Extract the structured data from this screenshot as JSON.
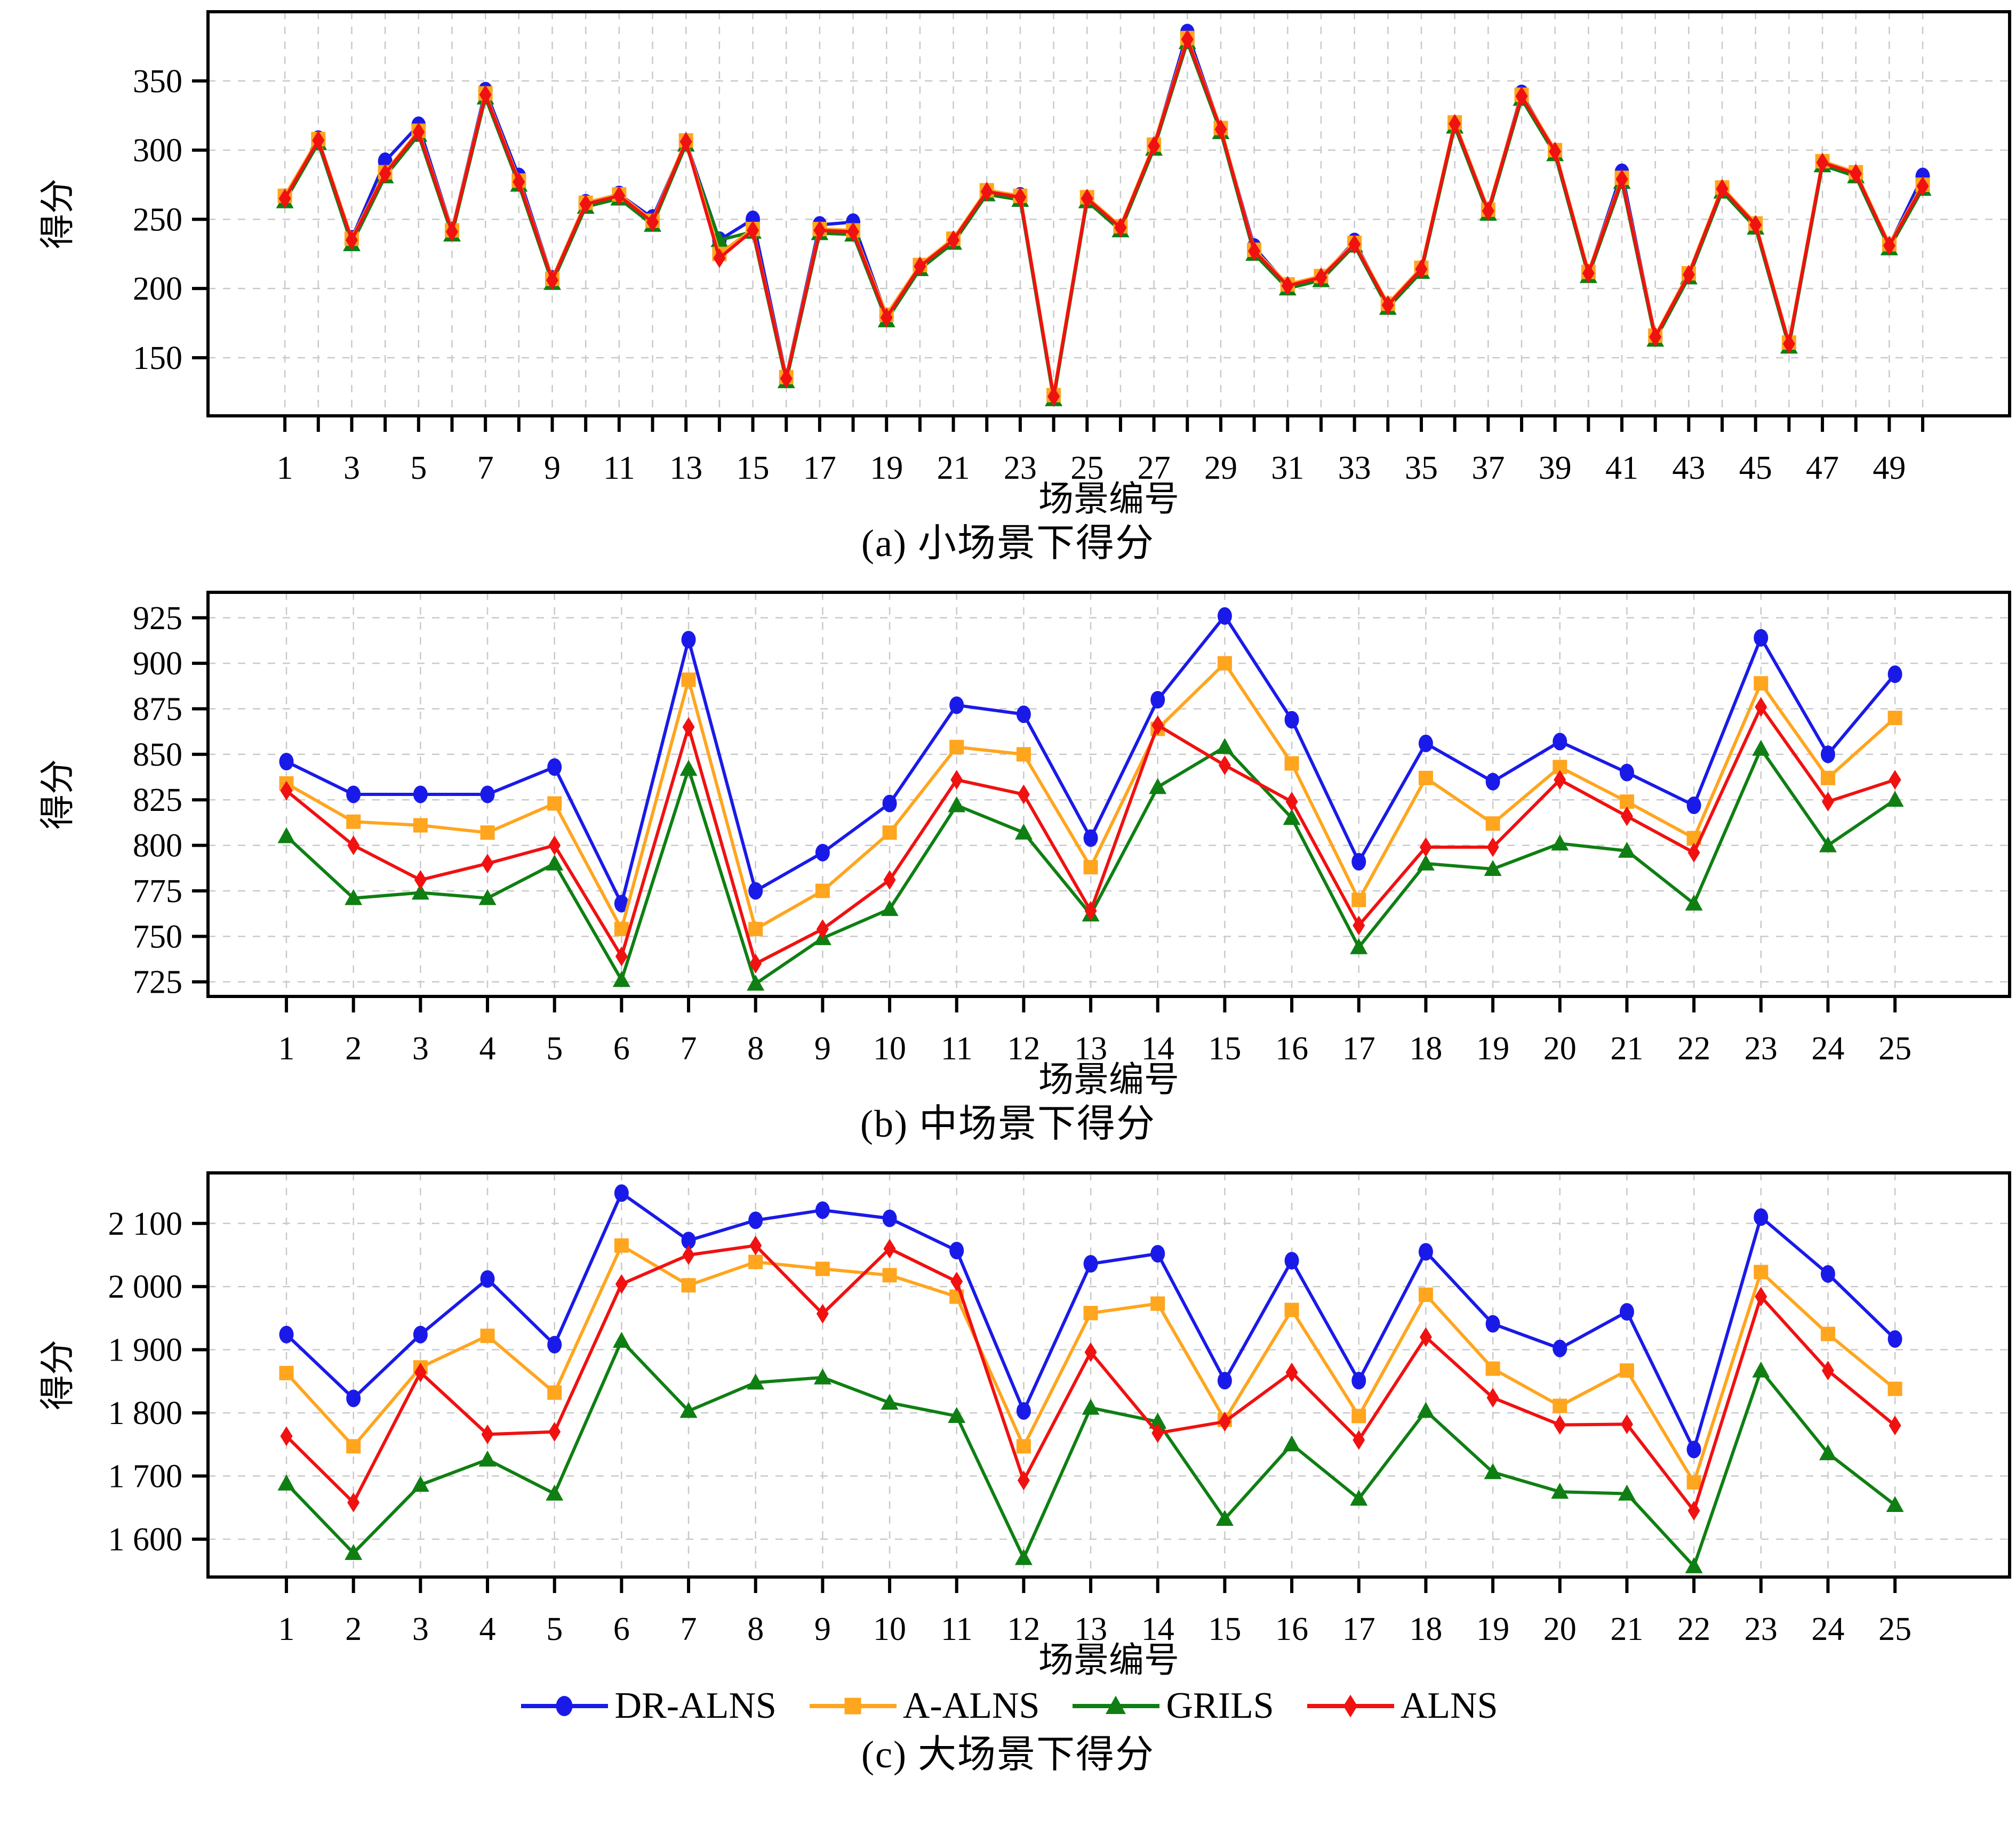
{
  "legend": [
    {
      "name": "DR-ALNS",
      "color": "#1a1ae8",
      "marker": "circle"
    },
    {
      "name": "A-ALNS",
      "color": "#ffa51e",
      "marker": "square"
    },
    {
      "name": "GRILS",
      "color": "#0f7f13",
      "marker": "triangle"
    },
    {
      "name": "ALNS",
      "color": "#f01111",
      "marker": "diamond"
    }
  ],
  "style": {
    "grid_color": "#c9c9c9",
    "frame_color": "#000000",
    "legend_position": "bottom-center",
    "grid": "on"
  },
  "chart_data": [
    {
      "id": "a",
      "type": "line",
      "caption": "(a) 小场景下得分",
      "xlabel": "场景编号",
      "ylabel": "得分",
      "x": [
        1,
        2,
        3,
        4,
        5,
        6,
        7,
        8,
        9,
        10,
        11,
        12,
        13,
        14,
        15,
        16,
        17,
        18,
        19,
        20,
        21,
        22,
        23,
        24,
        25,
        26,
        27,
        28,
        29,
        30,
        31,
        32,
        33,
        34,
        35,
        36,
        37,
        38,
        39,
        40,
        41,
        42,
        43,
        44,
        45,
        46,
        47,
        48,
        49,
        50
      ],
      "xticks": [
        1,
        3,
        5,
        7,
        9,
        11,
        13,
        15,
        17,
        19,
        21,
        23,
        25,
        27,
        29,
        31,
        33,
        35,
        37,
        39,
        41,
        43,
        45,
        47,
        49
      ],
      "xlim": [
        -1.3,
        52.6
      ],
      "ylim": [
        108,
        400
      ],
      "yticks": [
        150,
        200,
        250,
        300,
        350
      ],
      "thousands_sep": false,
      "series": [
        {
          "name": "DR-ALNS",
          "color": "#1a1ae8",
          "marker": "circle",
          "values": [
            266,
            308,
            236,
            292,
            318,
            242,
            343,
            281,
            207,
            262,
            268,
            251,
            306,
            235,
            250,
            136,
            246,
            248,
            180,
            216,
            235,
            270,
            267,
            122,
            265,
            244,
            303,
            385,
            315,
            230,
            202,
            208,
            234,
            188,
            214,
            319,
            256,
            341,
            299,
            211,
            284,
            165,
            210,
            272,
            246,
            160,
            291,
            283,
            231,
            281
          ]
        },
        {
          "name": "A-ALNS",
          "color": "#ffa51e",
          "marker": "square",
          "values": [
            267,
            308,
            236,
            284,
            314,
            242,
            341,
            278,
            207,
            262,
            268,
            249,
            307,
            225,
            243,
            136,
            243,
            242,
            181,
            217,
            236,
            271,
            267,
            123,
            266,
            245,
            304,
            381,
            316,
            228,
            203,
            209,
            233,
            189,
            215,
            320,
            257,
            340,
            300,
            212,
            280,
            166,
            211,
            273,
            247,
            161,
            292,
            284,
            232,
            275
          ]
        },
        {
          "name": "GRILS",
          "color": "#0f7f13",
          "marker": "triangle",
          "values": [
            263,
            305,
            232,
            281,
            311,
            239,
            338,
            275,
            204,
            259,
            265,
            246,
            304,
            235,
            241,
            133,
            240,
            239,
            177,
            214,
            233,
            268,
            264,
            120,
            263,
            242,
            301,
            378,
            313,
            225,
            200,
            206,
            231,
            186,
            212,
            317,
            254,
            337,
            297,
            209,
            277,
            163,
            208,
            270,
            244,
            158,
            289,
            281,
            229,
            272
          ]
        },
        {
          "name": "ALNS",
          "color": "#f01111",
          "marker": "diamond",
          "values": [
            265,
            307,
            235,
            283,
            313,
            241,
            340,
            277,
            206,
            261,
            267,
            248,
            306,
            222,
            242,
            135,
            242,
            241,
            179,
            216,
            235,
            270,
            266,
            122,
            265,
            244,
            303,
            380,
            315,
            227,
            202,
            208,
            232,
            188,
            214,
            319,
            256,
            339,
            299,
            211,
            279,
            165,
            210,
            272,
            246,
            160,
            291,
            283,
            231,
            274
          ]
        }
      ]
    },
    {
      "id": "b",
      "type": "line",
      "caption": "(b) 中场景下得分",
      "xlabel": "场景编号",
      "ylabel": "得分",
      "x": [
        1,
        2,
        3,
        4,
        5,
        6,
        7,
        8,
        9,
        10,
        11,
        12,
        13,
        14,
        15,
        16,
        17,
        18,
        19,
        20,
        21,
        22,
        23,
        24,
        25
      ],
      "xticks": [
        1,
        2,
        3,
        4,
        5,
        6,
        7,
        8,
        9,
        10,
        11,
        12,
        13,
        14,
        15,
        16,
        17,
        18,
        19,
        20,
        21,
        22,
        23,
        24,
        25
      ],
      "xlim": [
        -0.17,
        26.71
      ],
      "ylim": [
        717,
        939
      ],
      "yticks": [
        725,
        750,
        775,
        800,
        825,
        850,
        875,
        900,
        925
      ],
      "thousands_sep": false,
      "series": [
        {
          "name": "DR-ALNS",
          "color": "#1a1ae8",
          "marker": "circle",
          "values": [
            846,
            828,
            828,
            828,
            843,
            768,
            913,
            775,
            796,
            823,
            877,
            872,
            804,
            880,
            926,
            869,
            791,
            856,
            835,
            857,
            840,
            822,
            914,
            850,
            894
          ]
        },
        {
          "name": "A-ALNS",
          "color": "#ffa51e",
          "marker": "square",
          "values": [
            834,
            813,
            811,
            807,
            823,
            754,
            891,
            754,
            775,
            807,
            854,
            850,
            788,
            864,
            900,
            845,
            770,
            837,
            812,
            843,
            824,
            804,
            889,
            837,
            870
          ]
        },
        {
          "name": "GRILS",
          "color": "#0f7f13",
          "marker": "triangle",
          "values": [
            805,
            771,
            774,
            771,
            790,
            726,
            842,
            724,
            749,
            765,
            822,
            807,
            762,
            832,
            854,
            815,
            744,
            790,
            787,
            801,
            797,
            768,
            853,
            800,
            825
          ]
        },
        {
          "name": "ALNS",
          "color": "#f01111",
          "marker": "diamond",
          "values": [
            830,
            800,
            781,
            790,
            800,
            739,
            865,
            735,
            754,
            781,
            836,
            828,
            764,
            866,
            844,
            824,
            756,
            799,
            799,
            836,
            816,
            796,
            876,
            824,
            836
          ]
        }
      ]
    },
    {
      "id": "c",
      "type": "line",
      "caption": "(c) 大场景下得分",
      "xlabel": "场景编号",
      "ylabel": "得分",
      "x": [
        1,
        2,
        3,
        4,
        5,
        6,
        7,
        8,
        9,
        10,
        11,
        12,
        13,
        14,
        15,
        16,
        17,
        18,
        19,
        20,
        21,
        22,
        23,
        24,
        25
      ],
      "xticks": [
        1,
        2,
        3,
        4,
        5,
        6,
        7,
        8,
        9,
        10,
        11,
        12,
        13,
        14,
        15,
        16,
        17,
        18,
        19,
        20,
        21,
        22,
        23,
        24,
        25
      ],
      "xlim": [
        -0.17,
        26.71
      ],
      "ylim": [
        1540,
        2180
      ],
      "yticks": [
        1600,
        1700,
        1800,
        1900,
        2000,
        2100
      ],
      "thousands_sep": true,
      "series": [
        {
          "name": "DR-ALNS",
          "color": "#1a1ae8",
          "marker": "circle",
          "values": [
            1924,
            1823,
            1924,
            2012,
            1908,
            2148,
            2073,
            2105,
            2121,
            2108,
            2057,
            1803,
            2036,
            2052,
            1851,
            2041,
            1851,
            2055,
            1941,
            1902,
            1960,
            1742,
            2110,
            2020,
            1917
          ]
        },
        {
          "name": "A-ALNS",
          "color": "#ffa51e",
          "marker": "square",
          "values": [
            1863,
            1747,
            1872,
            1922,
            1832,
            2065,
            2002,
            2039,
            2028,
            2018,
            1984,
            1747,
            1958,
            1973,
            1789,
            1963,
            1795,
            1987,
            1870,
            1811,
            1867,
            1690,
            2023,
            1925,
            1838
          ]
        },
        {
          "name": "GRILS",
          "color": "#0f7f13",
          "marker": "triangle",
          "values": [
            1688,
            1578,
            1686,
            1726,
            1672,
            1914,
            1803,
            1848,
            1856,
            1816,
            1795,
            1570,
            1808,
            1786,
            1632,
            1750,
            1664,
            1803,
            1706,
            1675,
            1672,
            1557,
            1867,
            1736,
            1654
          ]
        },
        {
          "name": "ALNS",
          "color": "#f01111",
          "marker": "diamond",
          "values": [
            1763,
            1658,
            1864,
            1766,
            1770,
            2004,
            2050,
            2065,
            1957,
            2060,
            2008,
            1693,
            1896,
            1768,
            1786,
            1864,
            1757,
            1920,
            1824,
            1781,
            1782,
            1645,
            1984,
            1867,
            1780
          ]
        }
      ]
    }
  ]
}
